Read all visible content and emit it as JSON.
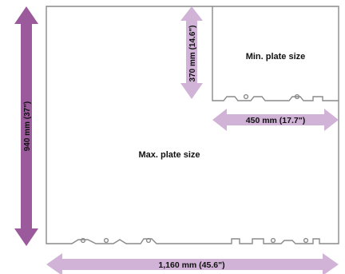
{
  "labels": {
    "max_plate": "Max. plate size",
    "min_plate": "Min. plate size",
    "dim_height_max": "940 mm (37\")",
    "dim_width_max": "1,160 mm (45.6\")",
    "dim_height_min": "370 mm (14.6\")",
    "dim_width_min": "450 mm (17.7\")"
  },
  "colors": {
    "arrow_dark": "#9b5a9b",
    "arrow_light": "#d1b3d7",
    "outline": "#8a8a8a",
    "text": "#111111",
    "background": "#ffffff"
  }
}
